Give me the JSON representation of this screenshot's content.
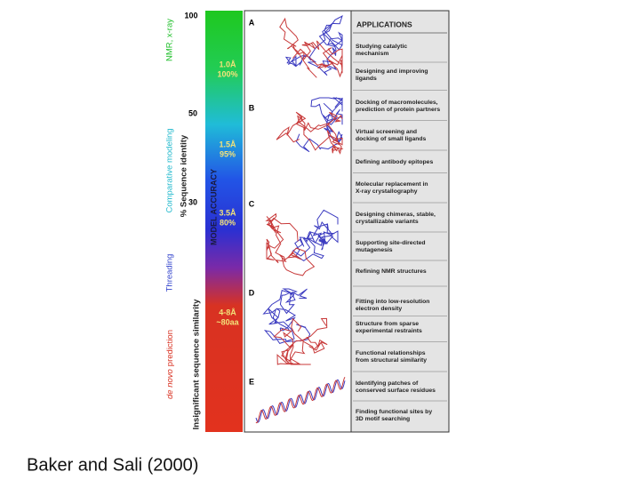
{
  "figure": {
    "side_labels": {
      "nmr": "NMR, x-ray",
      "comparative": "Comparative modeling",
      "threading": "Threading",
      "de_novo_italic": "de novo",
      "de_novo_rest": "prediction"
    },
    "axis": {
      "identity": "% Sequence identity",
      "insignificant": "Insignificant sequence similarity",
      "ticks": [
        "100",
        "50",
        "30"
      ]
    },
    "bar": {
      "title": "MODEL ACCURACY",
      "levels": [
        [
          "1.0Å",
          "100%"
        ],
        [
          "1.5Å",
          "95%"
        ],
        [
          "3.5Å",
          "80%"
        ],
        [
          "4-8Å",
          "~80aa"
        ]
      ]
    },
    "panels": [
      "A",
      "B",
      "C",
      "D",
      "E"
    ],
    "applications": {
      "title": "APPLICATIONS",
      "items": [
        [
          "Studying catalytic",
          "mechanism"
        ],
        [
          "Designing and improving",
          "ligands"
        ],
        [
          "Docking of macromolecules,",
          "prediction of protein partners"
        ],
        [
          "Virtual screening and",
          "docking of small ligands"
        ],
        [
          "Defining antibody epitopes"
        ],
        [
          "Molecular replacement in",
          "X-ray crystallography"
        ],
        [
          "Designing chimeras, stable,",
          "crystallizable variants"
        ],
        [
          "Supporting site-directed",
          "mutagenesis"
        ],
        [
          "Refining NMR structures"
        ],
        [
          "Fitting into low-resolution",
          "electron density"
        ],
        [
          "Structure from sparse",
          "experimental restraints"
        ],
        [
          "Functional relationships",
          "from structural similarity"
        ],
        [
          "Identifying patches of",
          "conserved surface residues"
        ],
        [
          "Finding functional sites by",
          "3D motif searching"
        ]
      ]
    }
  },
  "caption": "Baker and Sali (2000)"
}
